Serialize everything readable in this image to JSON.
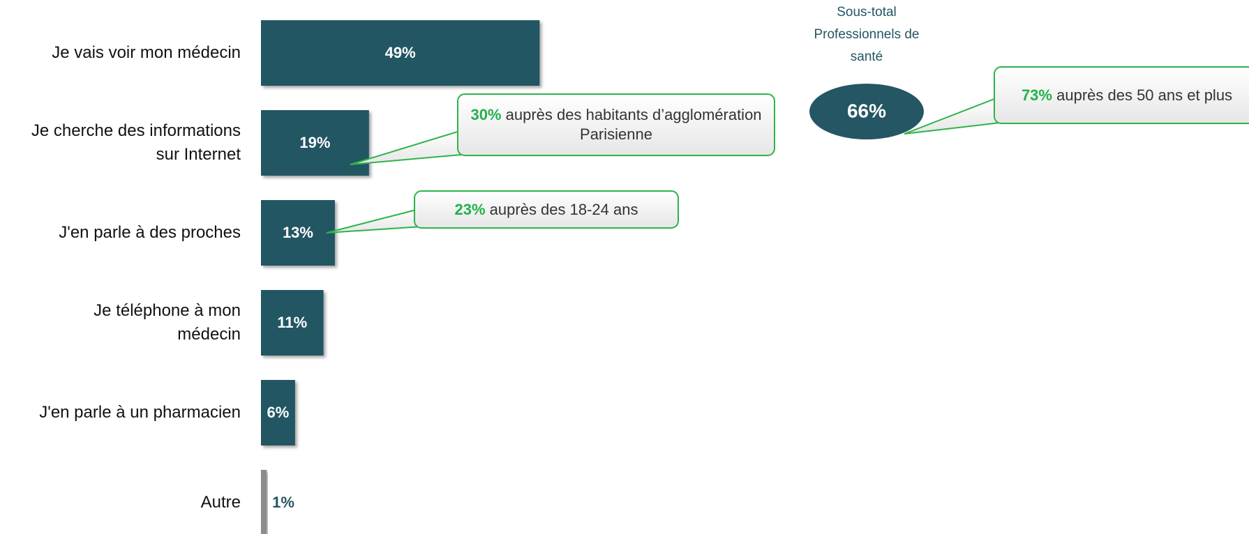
{
  "chart_data": {
    "type": "bar",
    "orientation": "horizontal",
    "categories": [
      "Je vais voir mon médecin",
      "Je cherche des informations sur Internet",
      "J'en parle à des proches",
      "Je téléphone à mon médecin",
      "J'en parle à un pharmacien",
      "Autre"
    ],
    "values": [
      49,
      19,
      13,
      11,
      6,
      1
    ],
    "value_labels": [
      "49%",
      "19%",
      "13%",
      "11%",
      "6%",
      "1%"
    ],
    "colors": [
      "#245664",
      "#245664",
      "#245664",
      "#245664",
      "#245664",
      "#8c8c8c"
    ],
    "subtotal": {
      "label": "Sous-total Professionnels de santé",
      "text": "66%"
    },
    "callouts": [
      {
        "highlight": "30%",
        "text": "auprès des habitants d’agglomération Parisienne"
      },
      {
        "highlight": "23%",
        "text": "auprès des 18-24 ans"
      },
      {
        "highlight": "73%",
        "text": "auprès des 50 ans et plus"
      }
    ]
  }
}
